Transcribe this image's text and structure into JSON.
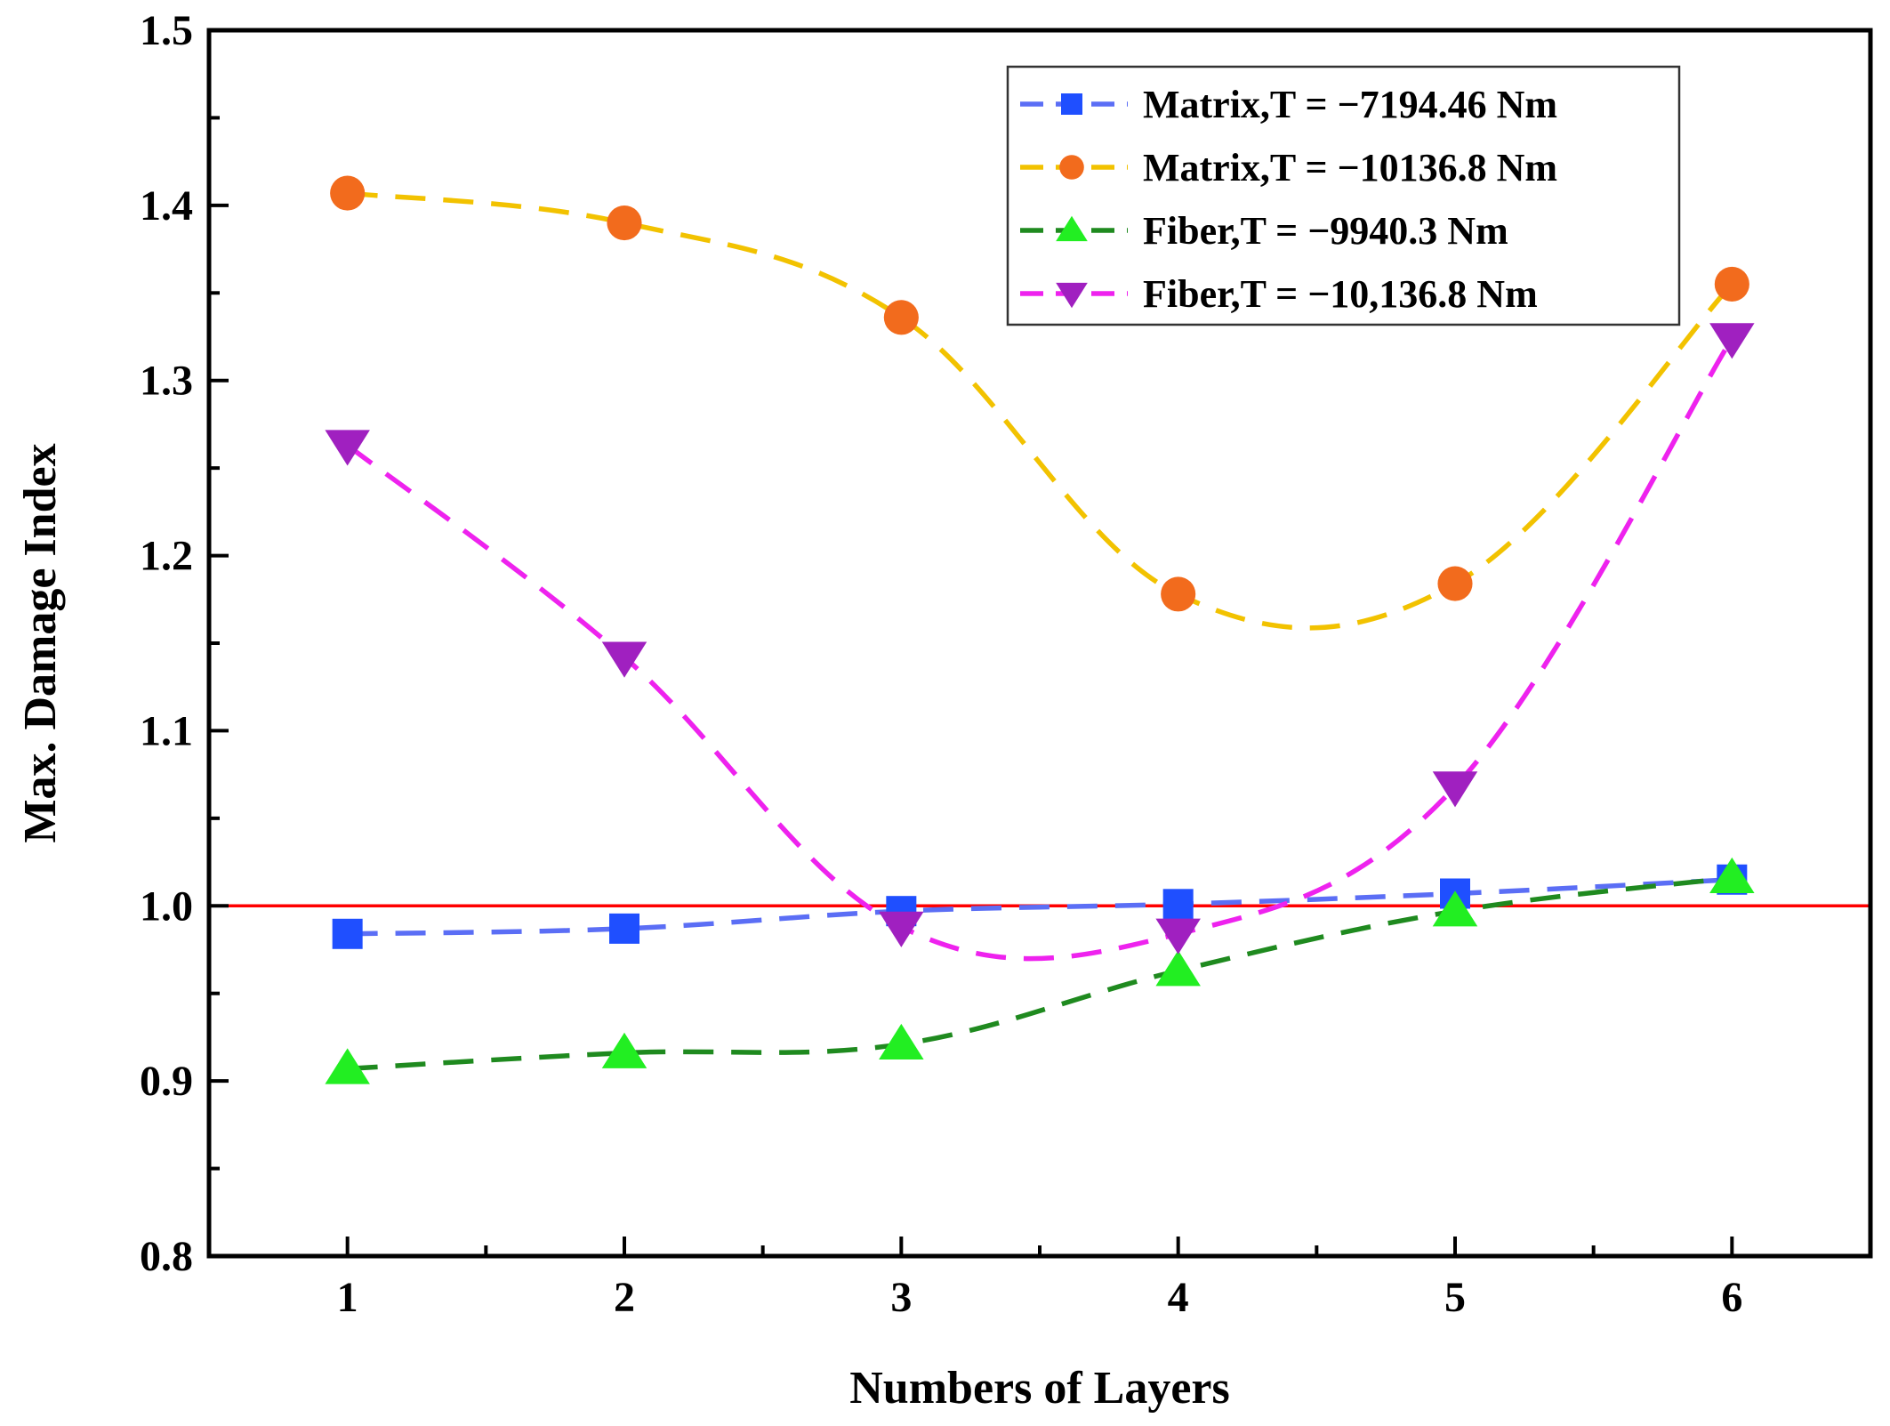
{
  "chart_data": {
    "type": "line",
    "title": "",
    "xlabel": "Numbers of Layers",
    "ylabel": "Max. Damage Index",
    "x": [
      1,
      2,
      3,
      4,
      5,
      6
    ],
    "xlim": [
      0.5,
      6.5
    ],
    "ylim": [
      0.8,
      1.5
    ],
    "xticks": [
      "1",
      "2",
      "3",
      "4",
      "5",
      "6"
    ],
    "yticks": [
      "0.8",
      "0.9",
      "1.0",
      "1.1",
      "1.2",
      "1.3",
      "1.4",
      "1.5"
    ],
    "reference_line": {
      "y": 1.0,
      "color": "#ff0000"
    },
    "legend_position": "top-right",
    "series": [
      {
        "name": "Matrix,T = −7194.46 Nm",
        "marker": "square",
        "line_color": "#5b6ef5",
        "marker_color": "#1f4fff",
        "values": [
          0.984,
          0.987,
          0.997,
          1.001,
          1.007,
          1.015
        ]
      },
      {
        "name": "Matrix,T = −10136.8 Nm",
        "marker": "circle",
        "line_color": "#f2c200",
        "marker_color": "#f26b1d",
        "values": [
          1.407,
          1.39,
          1.336,
          1.178,
          1.184,
          1.355
        ]
      },
      {
        "name": "Fiber,T = −9940.3 Nm",
        "marker": "triangle-up",
        "line_color": "#1f8a1f",
        "marker_color": "#22ee22",
        "values": [
          0.907,
          0.916,
          0.921,
          0.963,
          0.997,
          1.016
        ]
      },
      {
        "name": "Fiber,T = −10,136.8 Nm",
        "marker": "triangle-down",
        "line_color": "#ee22ee",
        "marker_color": "#a020c0",
        "values": [
          1.263,
          1.142,
          0.988,
          0.984,
          1.068,
          1.324
        ]
      }
    ]
  }
}
